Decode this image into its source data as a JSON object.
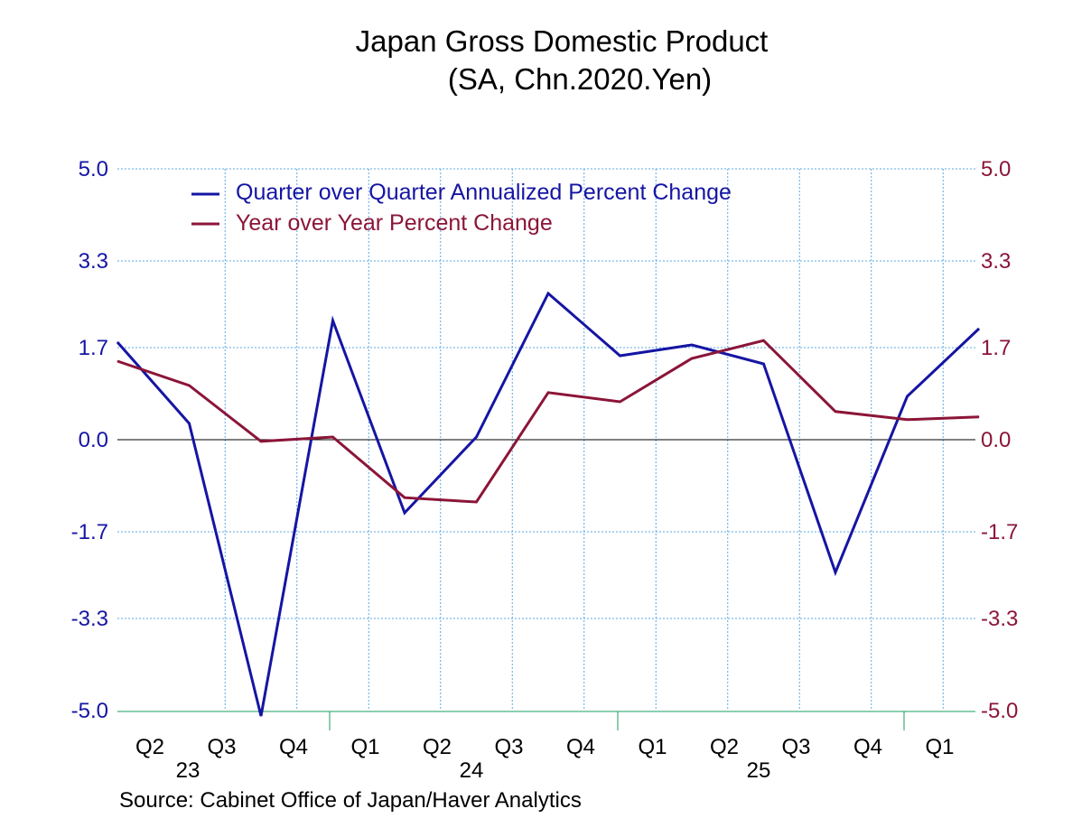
{
  "chart_data": {
    "type": "line",
    "title": "Japan Gross Domestic Product",
    "subtitle": "(SA, Chn.2020.Yen)",
    "source": "Source:  Cabinet Office of Japan/Haver Analytics",
    "quarter_labels": [
      "Q2",
      "Q3",
      "Q4",
      "Q1",
      "Q2",
      "Q3",
      "Q4",
      "Q1",
      "Q2",
      "Q3",
      "Q4",
      "Q1"
    ],
    "year_labels": [
      "23",
      "24",
      "25"
    ],
    "y_ticks": [
      "5.0",
      "3.3",
      "1.7",
      "0.0",
      "-1.7",
      "-3.3",
      "-5.0"
    ],
    "ylim": [
      -5.0,
      5.0
    ],
    "grid": true,
    "legend_position": "top-left",
    "series": [
      {
        "name": "Quarter over Quarter Annualized Percent Change",
        "color": "#1515a3",
        "axis": "left",
        "x": [
          "2023-Q1",
          "2023-Q2",
          "2023-Q3",
          "2023-Q4",
          "2024-Q1",
          "2024-Q2",
          "2024-Q3",
          "2024-Q4",
          "2025-Q1",
          "2025-Q2",
          "2025-Q3",
          "2025-Q4",
          "2026-Q1"
        ],
        "values": [
          1.8,
          0.3,
          -5.1,
          2.2,
          -1.35,
          0.05,
          2.7,
          1.55,
          1.75,
          1.4,
          -2.45,
          0.8,
          2.05
        ]
      },
      {
        "name": "Year over Year Percent Change",
        "color": "#8b1538",
        "axis": "right",
        "x": [
          "2023-Q1",
          "2023-Q2",
          "2023-Q3",
          "2023-Q4",
          "2024-Q1",
          "2024-Q2",
          "2024-Q3",
          "2024-Q4",
          "2025-Q1",
          "2025-Q2",
          "2025-Q3",
          "2025-Q4",
          "2026-Q1"
        ],
        "values": [
          1.45,
          1.0,
          -0.03,
          0.05,
          -1.07,
          -1.15,
          0.87,
          0.7,
          1.5,
          1.83,
          0.52,
          0.37,
          0.42
        ]
      }
    ]
  },
  "colors": {
    "left_axis": "#1515a3",
    "right_axis": "#8b1538",
    "grid": "#5aa8e6",
    "zero_line": "#000000",
    "axis_line": "#1a9e60"
  }
}
